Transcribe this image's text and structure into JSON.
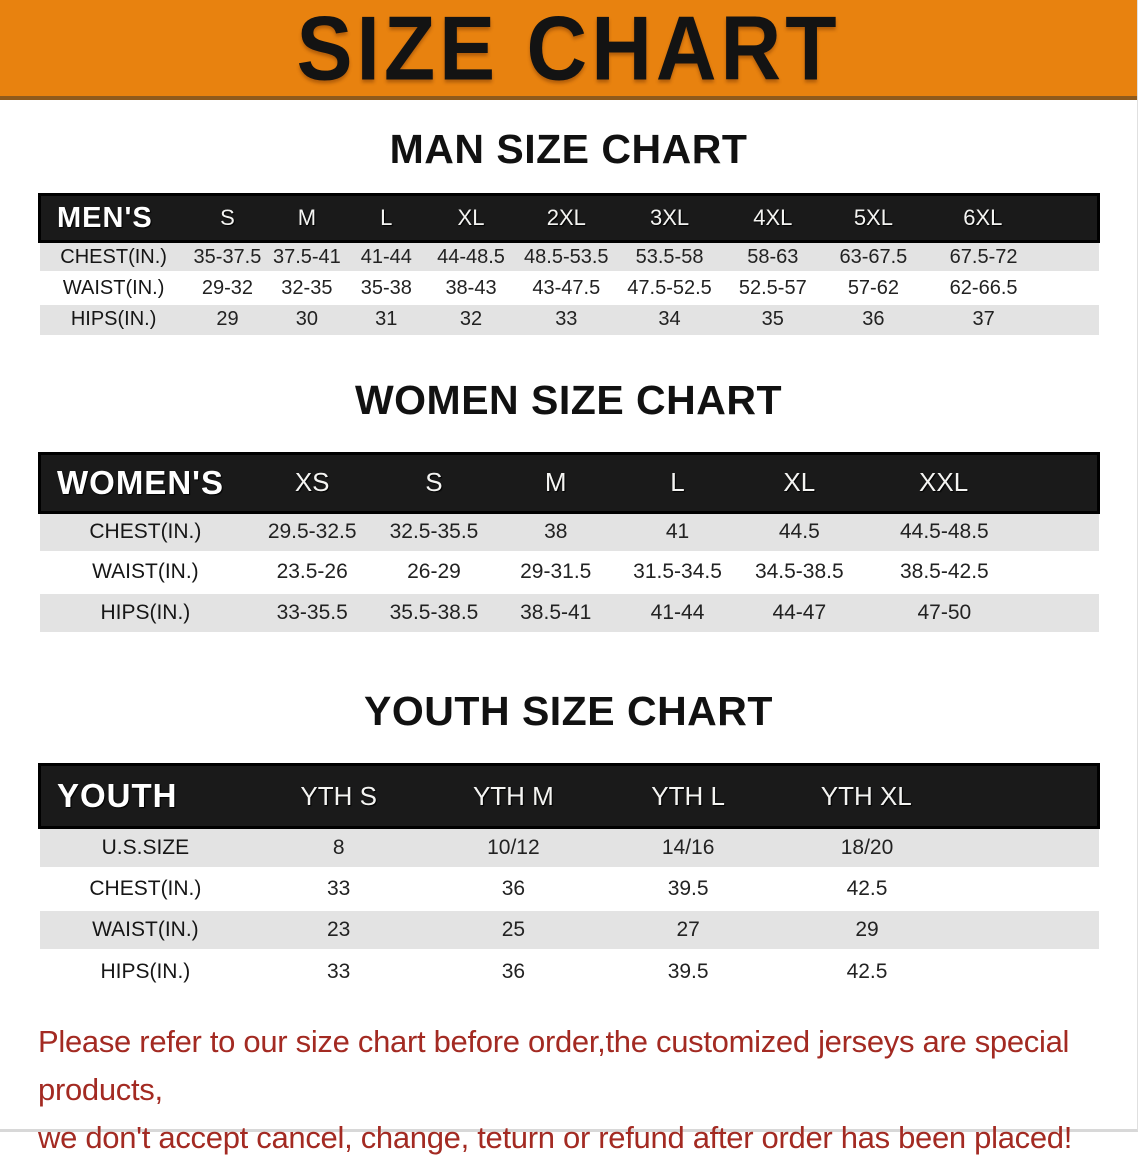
{
  "banner": {
    "title": "SIZE CHART"
  },
  "sections": [
    {
      "title": "MAN SIZE CHART",
      "header_label": "MEN'S",
      "columns": [
        "S",
        "M",
        "L",
        "XL",
        "2XL",
        "3XL",
        "4XL",
        "5XL",
        "6XL"
      ],
      "rows": [
        {
          "label": "CHEST(IN.)",
          "values": [
            "35-37.5",
            "37.5-41",
            "41-44",
            "44-48.5",
            "48.5-53.5",
            "53.5-58",
            "58-63",
            "63-67.5",
            "67.5-72"
          ]
        },
        {
          "label": "WAIST(IN.)",
          "values": [
            "29-32",
            "32-35",
            "35-38",
            "38-43",
            "43-47.5",
            "47.5-52.5",
            "52.5-57",
            "57-62",
            "62-66.5"
          ]
        },
        {
          "label": "HIPS(IN.)",
          "values": [
            "29",
            "30",
            "31",
            "32",
            "33",
            "34",
            "35",
            "36",
            "37"
          ]
        }
      ]
    },
    {
      "title": "WOMEN SIZE CHART",
      "header_label": "WOMEN'S",
      "columns": [
        "XS",
        "S",
        "M",
        "L",
        "XL",
        "XXL"
      ],
      "rows": [
        {
          "label": "CHEST(IN.)",
          "values": [
            "29.5-32.5",
            "32.5-35.5",
            "38",
            "41",
            "44.5",
            "44.5-48.5"
          ]
        },
        {
          "label": "WAIST(IN.)",
          "values": [
            "23.5-26",
            "26-29",
            "29-31.5",
            "31.5-34.5",
            "34.5-38.5",
            "38.5-42.5"
          ]
        },
        {
          "label": "HIPS(IN.)",
          "values": [
            "33-35.5",
            "35.5-38.5",
            "38.5-41",
            "41-44",
            "44-47",
            "47-50"
          ]
        }
      ]
    },
    {
      "title": "YOUTH SIZE CHART",
      "header_label": "YOUTH",
      "columns": [
        "YTH S",
        "YTH M",
        "YTH L",
        "YTH XL"
      ],
      "rows": [
        {
          "label": "U.S.SIZE",
          "values": [
            "8",
            "10/12",
            "14/16",
            "18/20"
          ]
        },
        {
          "label": "CHEST(IN.)",
          "values": [
            "33",
            "36",
            "39.5",
            "42.5"
          ]
        },
        {
          "label": "WAIST(IN.)",
          "values": [
            "23",
            "25",
            "27",
            "29"
          ]
        },
        {
          "label": "HIPS(IN.)",
          "values": [
            "33",
            "36",
            "39.5",
            "42.5"
          ]
        }
      ]
    }
  ],
  "note": {
    "lines": [
      "Please refer to our size chart before order,the customized jerseys are special products,",
      "we don't accept cancel, change, teturn or refund after order has been placed!"
    ]
  },
  "colors": {
    "banner_bg": "#E8820F",
    "header_bg": "#1a1a1a",
    "row_alt_bg": "#e3e3e3",
    "note_color": "#A32A22"
  }
}
